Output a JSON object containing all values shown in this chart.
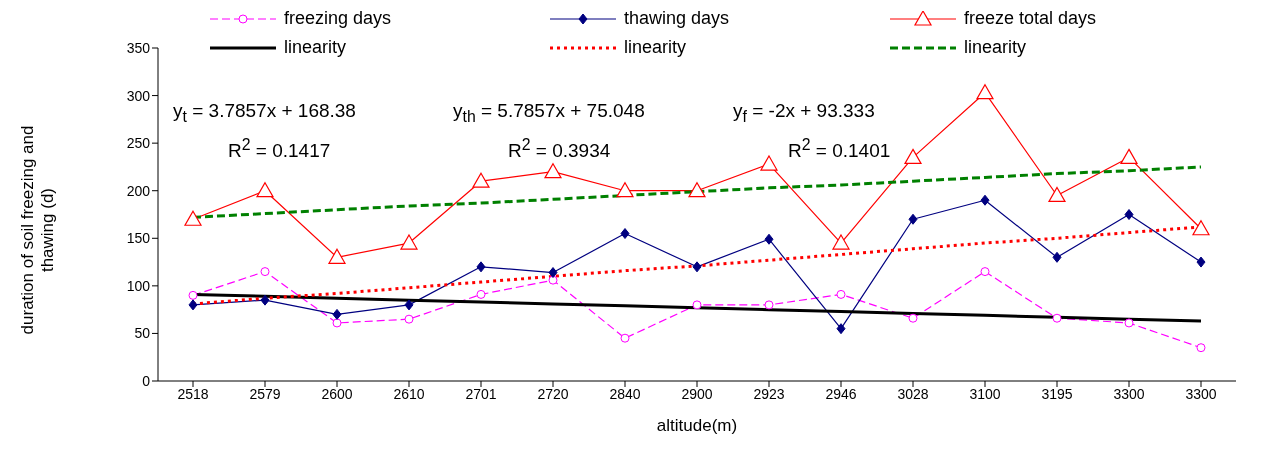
{
  "chart_data": {
    "type": "line",
    "xlabel": "altitude(m)",
    "ylabel": "duration of soil freezing and thawing (d)",
    "categories": [
      "2518",
      "2579",
      "2600",
      "2610",
      "2701",
      "2720",
      "2840",
      "2900",
      "2923",
      "2946",
      "3028",
      "3100",
      "3195",
      "3300",
      "3300"
    ],
    "series": [
      {
        "name": "freezing days",
        "color": "#ff00ff",
        "marker": "circle",
        "line_style": "dashed",
        "values": [
          90,
          115,
          61,
          65,
          91,
          106,
          45,
          80,
          80,
          91,
          66,
          115,
          66,
          61,
          35
        ]
      },
      {
        "name": "thawing days",
        "color": "#000080",
        "marker": "diamond",
        "line_style": "solid",
        "values": [
          80,
          85,
          70,
          80,
          120,
          114,
          155,
          120,
          149,
          55,
          170,
          190,
          130,
          175,
          125
        ]
      },
      {
        "name": "freeze total days",
        "color": "#ff0000",
        "marker": "triangle",
        "line_style": "solid",
        "values": [
          170,
          200,
          130,
          145,
          210,
          220,
          200,
          200,
          228,
          145,
          235,
          303,
          195,
          235,
          160
        ]
      },
      {
        "name": "linearity",
        "color": "#000000",
        "marker": "none",
        "line_style": "solid",
        "values": [
          91,
          89,
          87,
          85,
          83,
          81,
          79,
          77,
          75,
          73,
          71,
          69,
          67,
          65,
          63
        ]
      },
      {
        "name": "linearity",
        "color": "#ff0000",
        "marker": "none",
        "line_style": "dotted",
        "values": [
          81,
          87,
          92,
          98,
          104,
          110,
          116,
          121,
          127,
          133,
          139,
          145,
          150,
          156,
          162
        ]
      },
      {
        "name": "linearity",
        "color": "#008000",
        "marker": "none",
        "line_style": "dashed",
        "values": [
          172,
          176,
          180,
          184,
          187,
          191,
          195,
          199,
          203,
          206,
          210,
          214,
          218,
          221,
          225
        ]
      }
    ],
    "ylim": [
      0,
      350
    ],
    "yticks": [
      0,
      50,
      100,
      150,
      200,
      250,
      300,
      350
    ],
    "grid": false,
    "legend": "top",
    "annotations": [
      "y$_{t}$ = 3.7857x + 168.38",
      "R$^{2}$ = 0.1417",
      "y$_{th}$ = 5.7857x + 75.048",
      "R$^{2}$ = 0.3934",
      "y$_{f}$ = -2x + 93.333",
      "R$^{2}$ = 0.1401"
    ]
  }
}
